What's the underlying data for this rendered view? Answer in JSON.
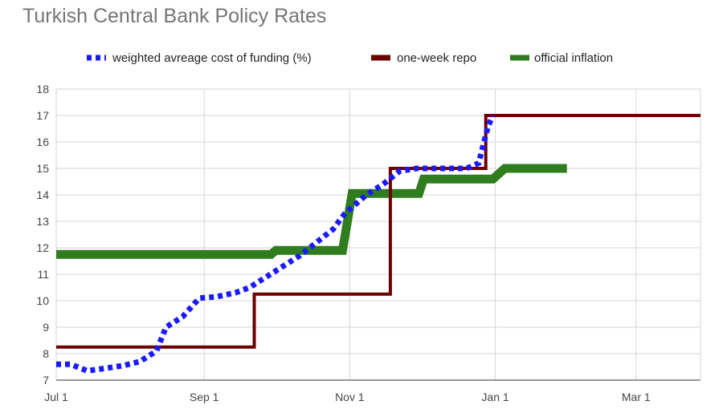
{
  "chart_data": {
    "type": "line",
    "title": "Turkish Central Bank Policy Rates",
    "xlabel": "",
    "ylabel": "",
    "x_range": [
      "2017-07-01",
      "2018-03-28"
    ],
    "ylim": [
      7,
      18
    ],
    "y_ticks": [
      7,
      8,
      9,
      10,
      11,
      12,
      13,
      14,
      15,
      16,
      17,
      18
    ],
    "x_ticks": [
      {
        "date": "2017-07-01",
        "label": "Jul 1"
      },
      {
        "date": "2017-09-01",
        "label": "Sep 1"
      },
      {
        "date": "2017-11-01",
        "label": "Nov 1"
      },
      {
        "date": "2018-01-01",
        "label": "Jan 1"
      },
      {
        "date": "2018-03-01",
        "label": "Mar 1"
      }
    ],
    "grid": true,
    "legend_position": "top",
    "series": [
      {
        "name": "weighted avreage cost of funding (%)",
        "color": "#1a1aff",
        "style": "dotted",
        "points": [
          [
            "2017-07-01",
            7.6
          ],
          [
            "2017-07-07",
            7.6
          ],
          [
            "2017-07-14",
            7.35
          ],
          [
            "2017-07-22",
            7.45
          ],
          [
            "2017-07-29",
            7.55
          ],
          [
            "2017-08-05",
            7.7
          ],
          [
            "2017-08-12",
            8.1
          ],
          [
            "2017-08-16",
            9.0
          ],
          [
            "2017-08-23",
            9.4
          ],
          [
            "2017-08-30",
            10.1
          ],
          [
            "2017-09-06",
            10.15
          ],
          [
            "2017-09-14",
            10.3
          ],
          [
            "2017-09-20",
            10.5
          ],
          [
            "2017-09-27",
            10.9
          ],
          [
            "2017-10-04",
            11.3
          ],
          [
            "2017-10-11",
            11.7
          ],
          [
            "2017-10-18",
            12.2
          ],
          [
            "2017-10-25",
            12.7
          ],
          [
            "2017-10-30",
            13.3
          ],
          [
            "2017-11-08",
            14.0
          ],
          [
            "2017-11-15",
            14.4
          ],
          [
            "2017-11-22",
            14.9
          ],
          [
            "2017-11-29",
            15.0
          ],
          [
            "2017-12-06",
            15.0
          ],
          [
            "2017-12-13",
            15.0
          ],
          [
            "2017-12-20",
            15.0
          ],
          [
            "2017-12-25",
            15.2
          ],
          [
            "2017-12-29",
            16.6
          ],
          [
            "2017-12-31",
            17.0
          ]
        ]
      },
      {
        "name": "one-week repo",
        "color": "#6b0000",
        "style": "solid",
        "points": [
          [
            "2017-07-01",
            8.25
          ],
          [
            "2017-09-22",
            8.25
          ],
          [
            "2017-09-22",
            10.25
          ],
          [
            "2017-11-18",
            10.25
          ],
          [
            "2017-11-18",
            15.0
          ],
          [
            "2017-12-28",
            15.0
          ],
          [
            "2017-12-28",
            17.0
          ],
          [
            "2018-03-28",
            17.0
          ]
        ]
      },
      {
        "name": "official inflation",
        "color": "#2f7d1f",
        "style": "solid",
        "points": [
          [
            "2017-07-01",
            11.75
          ],
          [
            "2017-09-29",
            11.75
          ],
          [
            "2017-10-01",
            11.9
          ],
          [
            "2017-10-29",
            11.9
          ],
          [
            "2017-11-02",
            14.05
          ],
          [
            "2017-11-30",
            14.05
          ],
          [
            "2017-12-02",
            14.6
          ],
          [
            "2017-12-31",
            14.6
          ],
          [
            "2018-01-05",
            15.0
          ],
          [
            "2018-01-31",
            15.0
          ]
        ]
      }
    ]
  }
}
